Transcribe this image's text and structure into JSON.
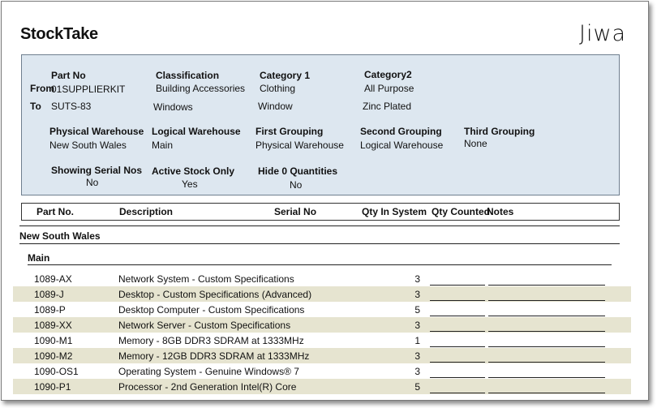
{
  "report": {
    "title": "StockTake",
    "logo": "Jiwa"
  },
  "criteria": {
    "from_label": "From",
    "to_label": "To",
    "part_no": {
      "label": "Part No",
      "from": "01SUPPLIERKIT",
      "to": "SUTS-83"
    },
    "classification": {
      "label": "Classification",
      "from": "Building Accessories",
      "to": "Windows"
    },
    "category1": {
      "label": "Category 1",
      "from": "Clothing",
      "to": "Window"
    },
    "category2": {
      "label": "Category2",
      "from": "All Purpose",
      "to": "Zinc Plated"
    },
    "physical_warehouse": {
      "label": "Physical Warehouse",
      "value": "New South Wales"
    },
    "logical_warehouse": {
      "label": "Logical Warehouse",
      "value": "Main"
    },
    "first_grouping": {
      "label": "First Grouping",
      "value": "Physical Warehouse"
    },
    "second_grouping": {
      "label": "Second Grouping",
      "value": "Logical Warehouse"
    },
    "third_grouping": {
      "label": "Third Grouping",
      "value": "None"
    },
    "showing_serial_nos": {
      "label": "Showing Serial Nos",
      "value": "No"
    },
    "active_stock_only": {
      "label": "Active Stock Only",
      "value": "Yes"
    },
    "hide_0_quantities": {
      "label": "Hide 0 Quantities",
      "value": "No"
    }
  },
  "columns": {
    "part_no": "Part No.",
    "description": "Description",
    "serial_no": "Serial No",
    "qty_in_system": "Qty In System",
    "qty_counted": "Qty Counted",
    "notes": "Notes"
  },
  "groups": {
    "physical": "New South Wales",
    "logical": "Main"
  },
  "rows": [
    {
      "part_no": "1089-AX",
      "description": "Network System - Custom Specifications",
      "qty": "3"
    },
    {
      "part_no": "1089-J",
      "description": "Desktop - Custom Specifications (Advanced)",
      "qty": "3"
    },
    {
      "part_no": "1089-P",
      "description": "Desktop Computer  - Custom Specifications",
      "qty": "5"
    },
    {
      "part_no": "1089-XX",
      "description": "Network Server - Custom Specifications",
      "qty": "3"
    },
    {
      "part_no": "1090-M1",
      "description": "Memory -  8GB DDR3 SDRAM at 1333MHz",
      "qty": "1"
    },
    {
      "part_no": "1090-M2",
      "description": "Memory - 12GB DDR3 SDRAM at 1333MHz",
      "qty": "3"
    },
    {
      "part_no": "1090-OS1",
      "description": "Operating System - Genuine Windows® 7",
      "qty": "3"
    },
    {
      "part_no": "1090-P1",
      "description": "Processor - 2nd Generation Intel(R) Core",
      "qty": "5"
    }
  ]
}
